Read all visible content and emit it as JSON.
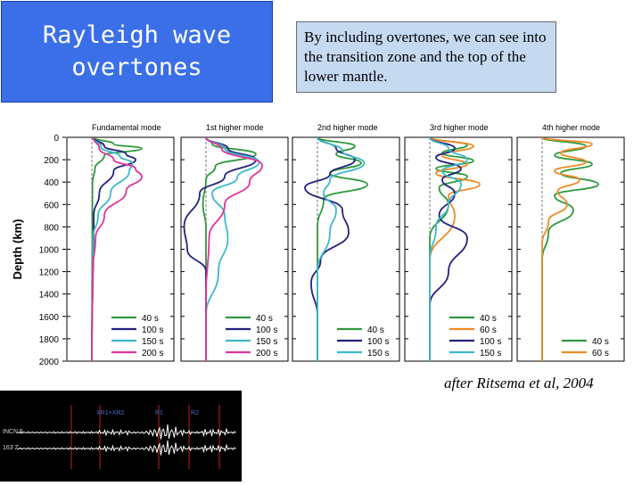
{
  "slide": {
    "title": "Rayleigh wave\novertones",
    "note": "By including overtones, we can see into the transition zone and the top of the lower mantle.",
    "caption": "after Ritsema et al, 2004"
  },
  "chart_data": {
    "type": "line",
    "ylabel": "Depth (km)",
    "y_ticks": [
      0,
      200,
      400,
      600,
      800,
      1000,
      1200,
      1400,
      1600,
      1800,
      2000
    ],
    "ylim": [
      0,
      2000
    ],
    "colors": {
      "40 s": "#2e9a3e",
      "60 s": "#f08a24",
      "100 s": "#23227e",
      "150 s": "#3fb8c8",
      "200 s": "#e0339a"
    },
    "panels": [
      {
        "title": "Fundamental mode",
        "legend": [
          "40 s",
          "100 s",
          "150 s",
          "200 s"
        ],
        "series": [
          {
            "name": "40 s",
            "x": [
              0.02,
              0.35,
              0.8,
              0.2,
              0.05,
              0.01,
              0.0
            ],
            "y": [
              0,
              60,
              100,
              160,
              280,
              400,
              2000
            ]
          },
          {
            "name": "100 s",
            "x": [
              0.02,
              0.2,
              0.55,
              0.7,
              0.35,
              0.12,
              0.03,
              0.0
            ],
            "y": [
              0,
              80,
              150,
              200,
              300,
              500,
              700,
              2000
            ]
          },
          {
            "name": "150 s",
            "x": [
              0.02,
              0.15,
              0.45,
              0.65,
              0.6,
              0.3,
              0.1,
              0.02,
              0.0
            ],
            "y": [
              0,
              90,
              170,
              230,
              300,
              500,
              700,
              900,
              2000
            ]
          },
          {
            "name": "200 s",
            "x": [
              0.02,
              0.12,
              0.35,
              0.7,
              0.8,
              0.55,
              0.2,
              0.06,
              0.01
            ],
            "y": [
              0,
              100,
              200,
              280,
              350,
              480,
              700,
              900,
              1200
            ]
          }
        ]
      },
      {
        "title": "1st higher mode",
        "legend": [
          "40 s",
          "100 s",
          "150 s",
          "200 s"
        ],
        "series": [
          {
            "name": "40 s",
            "x": [
              0.0,
              0.1,
              0.8,
              0.15,
              0.0,
              -0.05,
              0.0
            ],
            "y": [
              0,
              60,
              150,
              260,
              380,
              600,
              800
            ]
          },
          {
            "name": "100 s",
            "x": [
              0.0,
              0.35,
              0.8,
              0.3,
              -0.1,
              -0.35,
              -0.3,
              0.0
            ],
            "y": [
              0,
              100,
              200,
              350,
              500,
              800,
              1000,
              1200
            ]
          },
          {
            "name": "150 s",
            "x": [
              0.0,
              0.3,
              0.85,
              0.5,
              0.1,
              0.3,
              0.35,
              0.2,
              0.0
            ],
            "y": [
              0,
              100,
              220,
              360,
              500,
              700,
              900,
              1200,
              1600
            ]
          },
          {
            "name": "200 s",
            "x": [
              0.0,
              0.25,
              0.9,
              0.7,
              0.3,
              0.05,
              0.0
            ],
            "y": [
              0,
              100,
              250,
              400,
              600,
              900,
              1400
            ]
          }
        ]
      },
      {
        "title": "2nd higher mode",
        "legend": [
          "40 s",
          "100 s",
          "150 s"
        ],
        "series": [
          {
            "name": "40 s",
            "x": [
              0.0,
              0.6,
              0.3,
              0.7,
              0.2,
              0.8,
              0.1,
              0.0
            ],
            "y": [
              0,
              80,
              150,
              230,
              320,
              420,
              550,
              800
            ]
          },
          {
            "name": "100 s",
            "x": [
              0.0,
              0.3,
              0.6,
              0.2,
              -0.2,
              0.4,
              0.5,
              0.05,
              -0.1,
              0.0
            ],
            "y": [
              0,
              100,
              200,
              330,
              450,
              650,
              850,
              1100,
              1300,
              1600
            ]
          },
          {
            "name": "150 s",
            "x": [
              0.0,
              0.4,
              0.75,
              0.2,
              0.1,
              0.3,
              0.2,
              0.0
            ],
            "y": [
              0,
              120,
              230,
              380,
              500,
              650,
              850,
              1200
            ]
          }
        ]
      },
      {
        "title": "3rd higher mode",
        "legend": [
          "40 s",
          "60 s",
          "100 s",
          "150 s"
        ],
        "series": [
          {
            "name": "40 s",
            "x": [
              0.0,
              0.6,
              0.2,
              0.7,
              0.1,
              0.6,
              0.15,
              0.3,
              0.0
            ],
            "y": [
              0,
              70,
              140,
              210,
              280,
              350,
              450,
              600,
              900
            ]
          },
          {
            "name": "60 s",
            "x": [
              0.0,
              0.7,
              0.2,
              0.6,
              0.1,
              0.8,
              0.3,
              0.4,
              0.0
            ],
            "y": [
              0,
              80,
              160,
              240,
              320,
              420,
              520,
              700,
              1100
            ]
          },
          {
            "name": "100 s",
            "x": [
              0.0,
              0.4,
              0.1,
              0.5,
              0.2,
              0.4,
              0.15,
              0.6,
              0.3,
              0.0
            ],
            "y": [
              0,
              100,
              180,
              280,
              380,
              500,
              700,
              900,
              1200,
              1500
            ]
          },
          {
            "name": "150 s",
            "x": [
              0.0,
              0.3,
              0.6,
              0.2,
              0.5,
              0.3,
              0.1,
              0.0
            ],
            "y": [
              0,
              100,
              200,
              300,
              420,
              600,
              800,
              1100
            ]
          }
        ]
      },
      {
        "title": "4th higher mode",
        "legend": [
          "40 s",
          "60 s"
        ],
        "series": [
          {
            "name": "40 s",
            "x": [
              0.0,
              0.7,
              0.2,
              0.8,
              0.3,
              0.9,
              0.2,
              0.5,
              0.1,
              0.0
            ],
            "y": [
              0,
              80,
              160,
              240,
              320,
              420,
              520,
              650,
              850,
              1100
            ]
          },
          {
            "name": "60 s",
            "x": [
              0.0,
              0.8,
              0.3,
              0.7,
              0.2,
              0.6,
              0.25,
              0.4,
              0.1,
              0.0
            ],
            "y": [
              0,
              60,
              140,
              220,
              300,
              380,
              480,
              600,
              750,
              950
            ]
          }
        ]
      }
    ]
  },
  "seismogram": {
    "stations": [
      "INCN 5",
      "163 Z"
    ],
    "phase_labels": [
      "XR1+XR2",
      "R1",
      "R2"
    ]
  }
}
